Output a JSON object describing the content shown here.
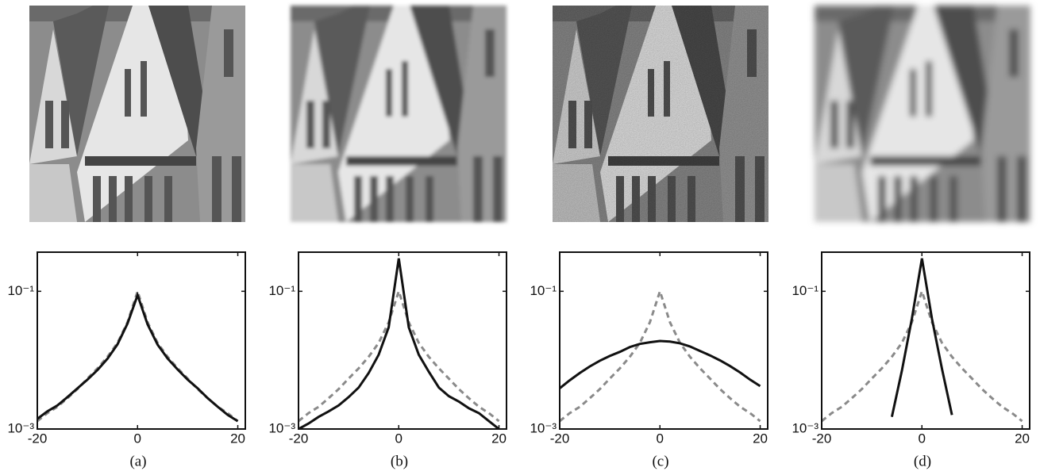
{
  "chart_data": [
    {
      "type": "line",
      "caption": "(a)",
      "yscale": "log",
      "xlim": [
        -20,
        21.5
      ],
      "ylim": [
        0.001,
        0.37
      ],
      "xticks": [
        -20,
        0,
        20
      ],
      "yticks": [
        {
          "value": 0.001,
          "label": "10⁻³"
        },
        {
          "value": 0.1,
          "label": "10⁻¹"
        }
      ],
      "x": [
        -20,
        -18,
        -16,
        -14,
        -12,
        -10,
        -8,
        -6,
        -4,
        -2,
        0,
        2,
        4,
        6,
        8,
        10,
        12,
        14,
        16,
        18,
        20
      ],
      "series": [
        {
          "color": "#8a8a8a",
          "linestyle": "dashed",
          "values": [
            0.0013,
            0.0017,
            0.0021,
            0.0028,
            0.0038,
            0.0054,
            0.0076,
            0.0112,
            0.0178,
            0.0355,
            0.1,
            0.0355,
            0.0178,
            0.0112,
            0.0076,
            0.0054,
            0.0038,
            0.0028,
            0.0021,
            0.0017,
            0.0013
          ]
        },
        {
          "color": "#111111",
          "linestyle": "solid",
          "values": [
            0.0014,
            0.0018,
            0.0022,
            0.0029,
            0.0039,
            0.0052,
            0.0072,
            0.0105,
            0.017,
            0.034,
            0.088,
            0.033,
            0.0168,
            0.0106,
            0.0073,
            0.0052,
            0.0039,
            0.0028,
            0.0021,
            0.0016,
            0.0013
          ]
        }
      ]
    },
    {
      "type": "line",
      "caption": "(b)",
      "yscale": "log",
      "xlim": [
        -20,
        21.5
      ],
      "ylim": [
        0.001,
        0.37
      ],
      "xticks": [
        -20,
        0,
        20
      ],
      "yticks": [
        {
          "value": 0.001,
          "label": "10⁻³"
        },
        {
          "value": 0.1,
          "label": "10⁻¹"
        }
      ],
      "x": [
        -20,
        -18,
        -16,
        -14,
        -12,
        -10,
        -8,
        -6,
        -4,
        -2,
        0,
        2,
        4,
        6,
        8,
        10,
        12,
        14,
        16,
        18,
        20
      ],
      "series": [
        {
          "color": "#8a8a8a",
          "linestyle": "dashed",
          "values": [
            0.0013,
            0.0017,
            0.0021,
            0.0028,
            0.0038,
            0.0054,
            0.0076,
            0.0112,
            0.0178,
            0.0355,
            0.1,
            0.0355,
            0.0178,
            0.0112,
            0.0076,
            0.0054,
            0.0038,
            0.0028,
            0.0021,
            0.0017,
            0.0013
          ]
        },
        {
          "color": "#111111",
          "linestyle": "solid",
          "values": [
            0.001,
            0.0012,
            0.0015,
            0.0018,
            0.0022,
            0.0029,
            0.004,
            0.0065,
            0.012,
            0.03,
            0.3,
            0.03,
            0.012,
            0.0068,
            0.004,
            0.003,
            0.0025,
            0.002,
            0.0017,
            0.0013,
            0.001
          ]
        }
      ]
    },
    {
      "type": "line",
      "caption": "(c)",
      "yscale": "log",
      "xlim": [
        -20,
        21.5
      ],
      "ylim": [
        0.001,
        0.37
      ],
      "xticks": [
        -20,
        0,
        20
      ],
      "yticks": [
        {
          "value": 0.001,
          "label": "10⁻³"
        },
        {
          "value": 0.1,
          "label": "10⁻¹"
        }
      ],
      "x": [
        -20,
        -18,
        -16,
        -14,
        -12,
        -10,
        -8,
        -6,
        -4,
        -2,
        0,
        2,
        4,
        6,
        8,
        10,
        12,
        14,
        16,
        18,
        20
      ],
      "series": [
        {
          "color": "#8a8a8a",
          "linestyle": "dashed",
          "values": [
            0.0013,
            0.0017,
            0.0021,
            0.0028,
            0.0038,
            0.0054,
            0.0076,
            0.0112,
            0.0178,
            0.0355,
            0.1,
            0.0355,
            0.0178,
            0.0112,
            0.0076,
            0.0054,
            0.0038,
            0.0028,
            0.0021,
            0.0017,
            0.0013
          ]
        },
        {
          "color": "#111111",
          "linestyle": "solid",
          "values": [
            0.0039,
            0.0051,
            0.0065,
            0.0081,
            0.0098,
            0.0115,
            0.0132,
            0.0155,
            0.0172,
            0.0182,
            0.019,
            0.0186,
            0.0176,
            0.0158,
            0.0136,
            0.0117,
            0.0099,
            0.0082,
            0.0066,
            0.0052,
            0.0042
          ]
        }
      ]
    },
    {
      "type": "line",
      "caption": "(d)",
      "yscale": "log",
      "xlim": [
        -20,
        21.5
      ],
      "ylim": [
        0.001,
        0.37
      ],
      "xticks": [
        -20,
        0,
        20
      ],
      "yticks": [
        {
          "value": 0.001,
          "label": "10⁻³"
        },
        {
          "value": 0.1,
          "label": "10⁻¹"
        }
      ],
      "x": [
        -20,
        -18,
        -16,
        -14,
        -12,
        -10,
        -8,
        -6,
        -4,
        -2,
        0,
        2,
        4,
        6,
        8,
        10,
        12,
        14,
        16,
        18,
        20
      ],
      "series": [
        {
          "color": "#8a8a8a",
          "linestyle": "dashed",
          "values": [
            0.0013,
            0.0017,
            0.0021,
            0.0028,
            0.0038,
            0.0054,
            0.0076,
            0.0112,
            0.0178,
            0.0355,
            0.1,
            0.0355,
            0.0178,
            0.0112,
            0.0076,
            0.0054,
            0.0038,
            0.0028,
            0.0021,
            0.0017,
            0.0013
          ]
        },
        {
          "color": "#111111",
          "linestyle": "solid",
          "values": [
            null,
            null,
            null,
            null,
            null,
            null,
            null,
            0.0015,
            0.007,
            0.04,
            0.3,
            0.04,
            0.0075,
            0.0016,
            null,
            null,
            null,
            null,
            null,
            null,
            null
          ]
        }
      ]
    }
  ]
}
